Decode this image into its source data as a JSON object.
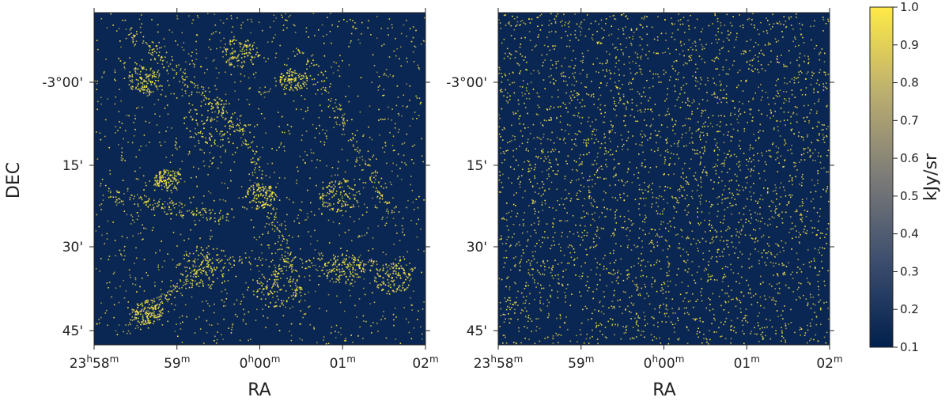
{
  "chart_data": [
    {
      "type": "heatmap",
      "xlabel": "RA",
      "ylabel": "DEC",
      "x_ticks": [
        {
          "h": "23",
          "m": "58"
        },
        {
          "h": "",
          "m": "59"
        },
        {
          "h": "0",
          "m": "00"
        },
        {
          "h": "",
          "m": "01"
        },
        {
          "h": "",
          "m": "02"
        }
      ],
      "y_ticks": [
        "-3°00'",
        "15'",
        "30'",
        "45'"
      ],
      "texture": "clustered",
      "background_value": 0.12,
      "source_value": 1.0
    },
    {
      "type": "heatmap",
      "xlabel": "RA",
      "ylabel": "",
      "x_ticks": [
        {
          "h": "23",
          "m": "58"
        },
        {
          "h": "",
          "m": "59"
        },
        {
          "h": "0",
          "m": "00"
        },
        {
          "h": "",
          "m": "01"
        },
        {
          "h": "",
          "m": "02"
        }
      ],
      "y_ticks": [
        "-3°00'",
        "15'",
        "30'",
        "45'"
      ],
      "texture": "uniform",
      "background_value": 0.12,
      "source_value": 1.0
    }
  ],
  "colorbar": {
    "label": "kJy/sr",
    "min": 0.1,
    "max": 1.0,
    "ticks": [
      "1.0",
      "0.9",
      "0.8",
      "0.7",
      "0.6",
      "0.5",
      "0.4",
      "0.3",
      "0.2",
      "0.1"
    ],
    "colormap": "cividis",
    "color_low": "#00204d",
    "color_mid": "#7c7b78",
    "color_high": "#ffea46"
  }
}
